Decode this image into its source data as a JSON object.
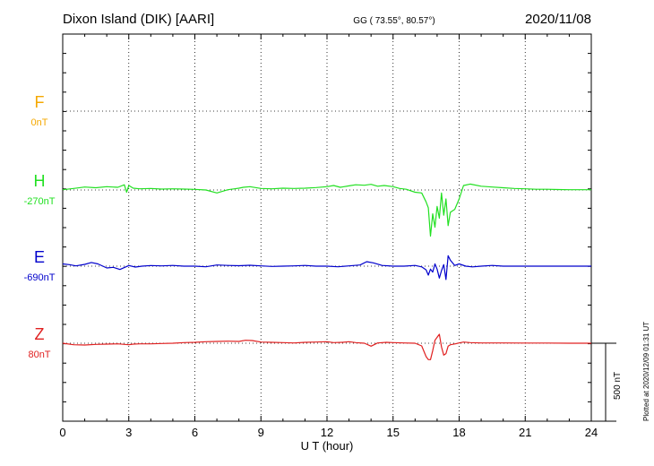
{
  "header": {
    "station": "Dixon Island (DIK)  [AARI]",
    "coords": "GG ( 73.55°,  80.57°)",
    "date": "2020/11/08"
  },
  "plotted_note": "Plotted at 2020/12/09 01:31  UT",
  "chart_data": {
    "type": "line",
    "xlabel": "U T (hour)",
    "xlim": [
      0,
      24
    ],
    "xticks": [
      0,
      3,
      6,
      9,
      12,
      15,
      18,
      21,
      24
    ],
    "scale_bar_label": "500 nT",
    "scale_bar_nT": 500,
    "row_spacing_nT": 345,
    "grid": "dotted",
    "series": [
      {
        "name": "F",
        "baseline_label": "0nT",
        "color": "#f5a800",
        "x": [],
        "y": []
      },
      {
        "name": "H",
        "baseline_label": "-270nT",
        "color": "#22e022",
        "x": [
          0,
          0.5,
          1,
          1.5,
          2,
          2.5,
          2.8,
          2.9,
          3.0,
          3.2,
          3.5,
          4,
          4.5,
          5,
          5.5,
          6,
          6.5,
          7,
          7.5,
          7.8,
          8,
          8.2,
          8.5,
          9,
          9.5,
          10,
          10.5,
          11,
          11.5,
          12,
          12.3,
          12.6,
          13,
          13.3,
          13.7,
          14,
          14.3,
          14.6,
          15,
          15.3,
          15.6,
          16,
          16.3,
          16.5,
          16.6,
          16.7,
          16.8,
          16.9,
          17.0,
          17.1,
          17.2,
          17.3,
          17.4,
          17.5,
          17.6,
          17.8,
          18.0,
          18.2,
          18.5,
          19,
          19.5,
          20,
          20.5,
          21,
          21.5,
          22,
          22.5,
          23,
          23.5,
          24
        ],
        "y": [
          2,
          10,
          20,
          15,
          22,
          18,
          35,
          -15,
          30,
          12,
          8,
          10,
          6,
          8,
          6,
          4,
          0,
          -20,
          2,
          8,
          12,
          18,
          22,
          10,
          8,
          12,
          10,
          12,
          16,
          22,
          30,
          18,
          28,
          35,
          32,
          38,
          25,
          30,
          22,
          10,
          5,
          -15,
          -20,
          -80,
          -120,
          -310,
          -160,
          -250,
          -110,
          -190,
          -20,
          -170,
          -60,
          -240,
          -150,
          -130,
          -60,
          30,
          40,
          25,
          20,
          15,
          10,
          8,
          5,
          5,
          3,
          2,
          2,
          2
        ]
      },
      {
        "name": "E",
        "baseline_label": "-690nT",
        "color": "#0000cc",
        "x": [
          0,
          0.3,
          0.6,
          1,
          1.3,
          1.6,
          2,
          2.3,
          2.6,
          3.0,
          3.3,
          3.6,
          4,
          4.5,
          5,
          5.5,
          6,
          6.5,
          7,
          7.5,
          8,
          8.5,
          9,
          9.5,
          10,
          10.5,
          11,
          11.5,
          12,
          12.5,
          13,
          13.5,
          13.8,
          14.1,
          14.5,
          15,
          15.5,
          16,
          16.3,
          16.5,
          16.6,
          16.7,
          16.8,
          16.9,
          17.0,
          17.1,
          17.2,
          17.3,
          17.4,
          17.5,
          17.6,
          17.8,
          18.0,
          18.3,
          18.6,
          19,
          19.5,
          20,
          21,
          22,
          23,
          24
        ],
        "y": [
          15,
          10,
          2,
          12,
          25,
          15,
          -12,
          -8,
          -22,
          4,
          -6,
          0,
          4,
          2,
          5,
          0,
          0,
          -4,
          8,
          5,
          3,
          6,
          2,
          -2,
          0,
          2,
          5,
          0,
          0,
          -4,
          2,
          8,
          30,
          22,
          5,
          0,
          0,
          5,
          -5,
          -25,
          -60,
          -20,
          -40,
          15,
          -20,
          -80,
          -30,
          10,
          -90,
          70,
          40,
          5,
          15,
          0,
          -5,
          0,
          5,
          0,
          0,
          0,
          0,
          0
        ]
      },
      {
        "name": "Z",
        "baseline_label": "80nT",
        "color": "#e02020",
        "x": [
          0,
          0.5,
          1,
          1.5,
          2,
          2.5,
          3,
          3.2,
          3.5,
          4,
          4.5,
          5,
          5.5,
          6,
          6.5,
          7,
          7.5,
          8,
          8.3,
          8.6,
          9,
          9.5,
          10,
          10.5,
          11,
          11.5,
          12,
          12.3,
          12.7,
          13,
          13.3,
          13.7,
          14.0,
          14.3,
          14.7,
          15,
          15.5,
          16,
          16.3,
          16.5,
          16.6,
          16.7,
          16.8,
          16.9,
          17.0,
          17.1,
          17.2,
          17.3,
          17.4,
          17.5,
          17.6,
          17.8,
          18.0,
          18.2,
          18.5,
          19,
          20,
          21,
          22,
          23,
          24
        ],
        "y": [
          0,
          -10,
          -12,
          -8,
          -6,
          -4,
          -10,
          -6,
          -4,
          -4,
          -2,
          0,
          4,
          6,
          10,
          12,
          14,
          12,
          20,
          18,
          8,
          6,
          4,
          2,
          6,
          8,
          10,
          4,
          6,
          10,
          4,
          0,
          -20,
          2,
          6,
          4,
          2,
          0,
          -18,
          -90,
          -110,
          -110,
          -50,
          20,
          40,
          60,
          -25,
          -80,
          -70,
          -20,
          -10,
          -5,
          2,
          8,
          4,
          2,
          2,
          1,
          1,
          0,
          0
        ]
      }
    ]
  }
}
